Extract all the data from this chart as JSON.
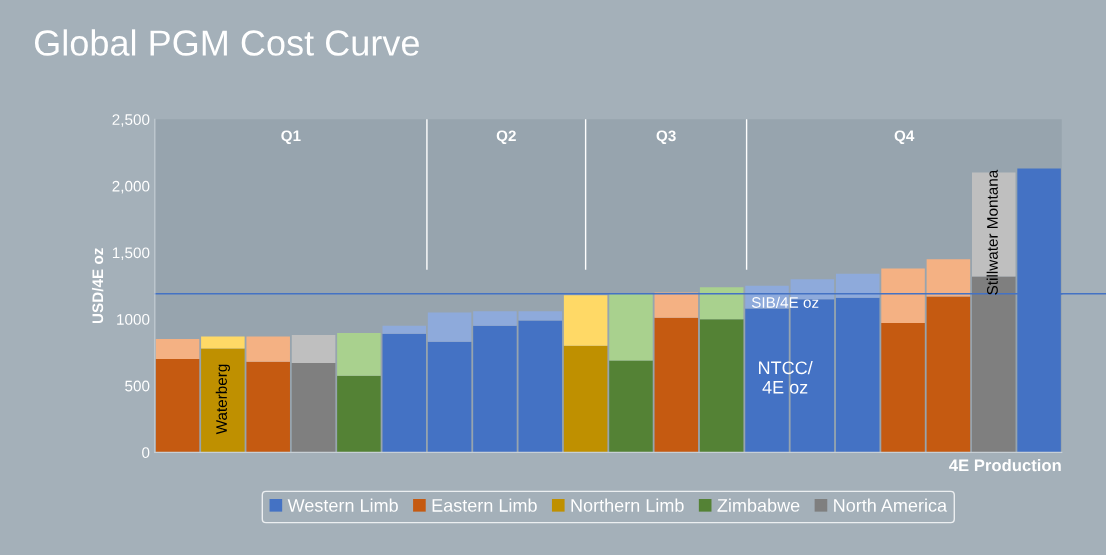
{
  "chart_data": {
    "type": "bar",
    "title": "Global PGM Cost Curve",
    "xlabel": "4E Production",
    "ylabel": "USD/4E oz",
    "categories": [
      null,
      null,
      null,
      null,
      null,
      null,
      null,
      null,
      null,
      null,
      null,
      null,
      null,
      null,
      null,
      null,
      null,
      null,
      null,
      null
    ],
    "stacked": true,
    "series": [
      {
        "name": "Western Limb",
        "color": "#4472c4",
        "values": [
          null,
          null,
          null,
          null,
          null,
          890,
          830,
          950,
          990,
          null,
          null,
          null,
          null,
          1080,
          1150,
          1160,
          null,
          null,
          null,
          2130
        ]
      },
      {
        "name": "Eastern Limb",
        "color": "#c55a11",
        "values": [
          700,
          null,
          680,
          null,
          null,
          null,
          null,
          null,
          null,
          null,
          null,
          1010,
          null,
          null,
          null,
          null,
          970,
          1170,
          null,
          null
        ]
      },
      {
        "name": "Northern Limb",
        "color": "#bf9000",
        "values": [
          null,
          780,
          null,
          null,
          null,
          null,
          null,
          null,
          null,
          800,
          null,
          null,
          null,
          null,
          null,
          null,
          null,
          null,
          null,
          null
        ]
      },
      {
        "name": "Zimbabwe",
        "color": "#548235",
        "values": [
          null,
          null,
          null,
          null,
          575,
          null,
          null,
          null,
          null,
          null,
          690,
          null,
          1000,
          null,
          null,
          null,
          null,
          null,
          null,
          null
        ]
      },
      {
        "name": "North America",
        "color": "#7f7f7f",
        "values": [
          null,
          null,
          null,
          670,
          null,
          null,
          null,
          null,
          null,
          null,
          null,
          null,
          null,
          null,
          null,
          null,
          null,
          null,
          1320,
          null
        ]
      },
      {
        "color": "#8eaadb",
        "values": [
          null,
          null,
          null,
          null,
          null,
          60,
          220,
          110,
          70,
          null,
          null,
          null,
          null,
          170,
          150,
          180,
          null,
          null,
          null,
          null
        ]
      },
      {
        "color": "#f4b183",
        "values": [
          150,
          null,
          190,
          null,
          null,
          null,
          null,
          null,
          null,
          null,
          null,
          190,
          null,
          null,
          null,
          null,
          410,
          280,
          null,
          null
        ]
      },
      {
        "color": "#ffd966",
        "values": [
          null,
          90,
          null,
          null,
          null,
          null,
          null,
          null,
          null,
          380,
          null,
          null,
          null,
          null,
          null,
          null,
          null,
          null,
          null,
          null
        ]
      },
      {
        "color": "#a9d18e",
        "values": [
          null,
          null,
          null,
          null,
          320,
          null,
          null,
          null,
          null,
          null,
          500,
          null,
          240,
          null,
          null,
          null,
          null,
          null,
          null,
          null
        ]
      },
      {
        "color": "#bfbfbf",
        "values": [
          null,
          null,
          null,
          210,
          null,
          null,
          null,
          null,
          null,
          null,
          null,
          null,
          null,
          null,
          null,
          null,
          null,
          null,
          780,
          null
        ]
      }
    ],
    "ylim": [
      0,
      2500
    ],
    "yticks": [
      0,
      500,
      1000,
      {
        "value": 1500,
        "label": "1,500"
      },
      {
        "value": 2000,
        "label": "2,000"
      },
      {
        "value": 2500,
        "label": "2,500"
      }
    ],
    "ref_lines": [
      {
        "axis": "y",
        "value": 1190,
        "color": "#4472c4"
      }
    ],
    "annotations": [
      "Q1",
      "Q2",
      "Q3",
      "Q4",
      "Waterberg",
      "SIB/4E oz",
      "NTCC/\n4E oz",
      "Stillwater Montana"
    ],
    "legend": "bottom",
    "grid": false
  }
}
